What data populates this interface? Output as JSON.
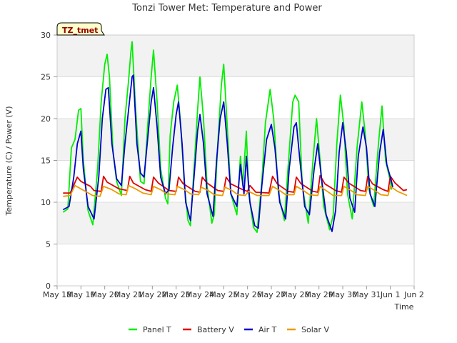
{
  "chart_data": {
    "type": "line",
    "title": "Tonzi Tower Met: Temperature and Power",
    "xlabel": "Time",
    "ylabel": "Temperature (C) / Power (V)",
    "ylim": [
      0,
      30
    ],
    "yticks": [
      0,
      5,
      10,
      15,
      20,
      25,
      30
    ],
    "xlim": [
      0,
      15
    ],
    "xticks": [
      {
        "value": 0,
        "label": "May 18"
      },
      {
        "value": 1,
        "label": "May 19"
      },
      {
        "value": 2,
        "label": "May 20"
      },
      {
        "value": 3,
        "label": "May 21"
      },
      {
        "value": 4,
        "label": "May 22"
      },
      {
        "value": 5,
        "label": "May 23"
      },
      {
        "value": 6,
        "label": "May 24"
      },
      {
        "value": 7,
        "label": "May 25"
      },
      {
        "value": 8,
        "label": "May 26"
      },
      {
        "value": 9,
        "label": "May 27"
      },
      {
        "value": 10,
        "label": "May 28"
      },
      {
        "value": 11,
        "label": "May 29"
      },
      {
        "value": 12,
        "label": "May 30"
      },
      {
        "value": 13,
        "label": "May 31"
      },
      {
        "value": 14,
        "label": "Jun 1"
      },
      {
        "value": 15,
        "label": "Jun 2"
      }
    ],
    "grid": true,
    "legend_position": "bottom",
    "badge": "TZ_tmet",
    "series": [
      {
        "name": "Panel T",
        "color": "#00ee00",
        "points": [
          [
            0.25,
            8.8
          ],
          [
            0.45,
            9.2
          ],
          [
            0.6,
            16.5
          ],
          [
            0.75,
            17.5
          ],
          [
            0.9,
            21.0
          ],
          [
            1.0,
            21.2
          ],
          [
            1.1,
            15.0
          ],
          [
            1.3,
            9.0
          ],
          [
            1.5,
            7.3
          ],
          [
            1.7,
            14.0
          ],
          [
            1.85,
            22.0
          ],
          [
            2.0,
            26.5
          ],
          [
            2.1,
            27.7
          ],
          [
            2.2,
            25.0
          ],
          [
            2.35,
            16.0
          ],
          [
            2.5,
            12.5
          ],
          [
            2.7,
            10.8
          ],
          [
            2.85,
            20.0
          ],
          [
            3.0,
            24.5
          ],
          [
            3.1,
            28.0
          ],
          [
            3.15,
            29.2
          ],
          [
            3.3,
            21.0
          ],
          [
            3.5,
            12.5
          ],
          [
            3.65,
            12.2
          ],
          [
            3.8,
            19.0
          ],
          [
            3.95,
            25.0
          ],
          [
            4.05,
            28.2
          ],
          [
            4.2,
            22.0
          ],
          [
            4.35,
            14.0
          ],
          [
            4.55,
            10.5
          ],
          [
            4.65,
            9.8
          ],
          [
            4.75,
            18.0
          ],
          [
            4.9,
            22.0
          ],
          [
            5.05,
            24.0
          ],
          [
            5.2,
            19.0
          ],
          [
            5.35,
            12.0
          ],
          [
            5.5,
            7.8
          ],
          [
            5.6,
            7.2
          ],
          [
            5.75,
            14.0
          ],
          [
            5.9,
            21.0
          ],
          [
            6.0,
            25.0
          ],
          [
            6.15,
            20.0
          ],
          [
            6.3,
            12.0
          ],
          [
            6.5,
            7.5
          ],
          [
            6.6,
            8.5
          ],
          [
            6.75,
            17.0
          ],
          [
            6.9,
            24.0
          ],
          [
            7.0,
            26.5
          ],
          [
            7.15,
            19.0
          ],
          [
            7.3,
            11.0
          ],
          [
            7.55,
            8.5
          ],
          [
            7.7,
            15.5
          ],
          [
            7.8,
            12.0
          ],
          [
            7.95,
            18.5
          ],
          [
            8.05,
            11.0
          ],
          [
            8.25,
            7.0
          ],
          [
            8.4,
            6.4
          ],
          [
            8.6,
            12.5
          ],
          [
            8.75,
            19.5
          ],
          [
            8.95,
            23.5
          ],
          [
            9.1,
            20.0
          ],
          [
            9.3,
            11.0
          ],
          [
            9.55,
            7.8
          ],
          [
            9.7,
            14.0
          ],
          [
            9.9,
            22.0
          ],
          [
            10.0,
            22.8
          ],
          [
            10.15,
            22.0
          ],
          [
            10.3,
            12.0
          ],
          [
            10.55,
            7.5
          ],
          [
            10.75,
            15.0
          ],
          [
            10.9,
            20.0
          ],
          [
            11.05,
            15.0
          ],
          [
            11.2,
            9.5
          ],
          [
            11.45,
            6.7
          ],
          [
            11.6,
            8.5
          ],
          [
            11.75,
            17.0
          ],
          [
            11.9,
            22.8
          ],
          [
            12.05,
            19.0
          ],
          [
            12.2,
            11.0
          ],
          [
            12.4,
            8.0
          ],
          [
            12.6,
            16.5
          ],
          [
            12.8,
            22.0
          ],
          [
            12.95,
            18.0
          ],
          [
            13.1,
            11.5
          ],
          [
            13.3,
            9.5
          ],
          [
            13.5,
            17.0
          ],
          [
            13.65,
            21.5
          ],
          [
            13.8,
            15.0
          ],
          [
            14.0,
            12.5
          ],
          [
            14.05,
            11.5
          ]
        ]
      },
      {
        "name": "Battery V",
        "color": "#dd0000",
        "points": [
          [
            0.25,
            11.1
          ],
          [
            0.55,
            11.1
          ],
          [
            0.85,
            13.0
          ],
          [
            1.0,
            12.5
          ],
          [
            1.4,
            11.9
          ],
          [
            1.55,
            11.4
          ],
          [
            1.85,
            11.3
          ],
          [
            1.95,
            13.1
          ],
          [
            2.1,
            12.4
          ],
          [
            2.6,
            11.6
          ],
          [
            2.95,
            11.4
          ],
          [
            3.05,
            13.1
          ],
          [
            3.2,
            12.3
          ],
          [
            3.7,
            11.5
          ],
          [
            3.95,
            11.3
          ],
          [
            4.05,
            13.0
          ],
          [
            4.25,
            12.3
          ],
          [
            4.7,
            11.4
          ],
          [
            5.0,
            11.3
          ],
          [
            5.1,
            13.0
          ],
          [
            5.3,
            12.2
          ],
          [
            5.8,
            11.3
          ],
          [
            6.0,
            11.2
          ],
          [
            6.1,
            13.0
          ],
          [
            6.3,
            12.3
          ],
          [
            6.75,
            11.4
          ],
          [
            7.0,
            11.3
          ],
          [
            7.1,
            13.0
          ],
          [
            7.3,
            12.2
          ],
          [
            7.8,
            11.5
          ],
          [
            8.0,
            11.3
          ],
          [
            8.1,
            12.0
          ],
          [
            8.35,
            11.2
          ],
          [
            8.9,
            11.1
          ],
          [
            9.05,
            13.1
          ],
          [
            9.25,
            12.2
          ],
          [
            9.7,
            11.3
          ],
          [
            9.95,
            11.2
          ],
          [
            10.05,
            13.0
          ],
          [
            10.25,
            12.2
          ],
          [
            10.75,
            11.3
          ],
          [
            10.95,
            11.2
          ],
          [
            11.05,
            13.2
          ],
          [
            11.25,
            12.2
          ],
          [
            11.7,
            11.4
          ],
          [
            11.95,
            11.2
          ],
          [
            12.05,
            13.0
          ],
          [
            12.25,
            12.3
          ],
          [
            12.75,
            11.4
          ],
          [
            12.95,
            11.3
          ],
          [
            13.05,
            13.1
          ],
          [
            13.25,
            12.2
          ],
          [
            13.7,
            11.5
          ],
          [
            13.9,
            11.3
          ],
          [
            14.0,
            13.1
          ],
          [
            14.2,
            12.3
          ],
          [
            14.55,
            11.4
          ],
          [
            14.7,
            11.5
          ]
        ]
      },
      {
        "name": "Air T",
        "color": "#0000cc",
        "points": [
          [
            0.25,
            9.1
          ],
          [
            0.5,
            9.5
          ],
          [
            0.7,
            13.0
          ],
          [
            0.85,
            17.0
          ],
          [
            1.0,
            18.5
          ],
          [
            1.1,
            14.0
          ],
          [
            1.3,
            9.5
          ],
          [
            1.55,
            8.0
          ],
          [
            1.75,
            13.0
          ],
          [
            1.9,
            20.0
          ],
          [
            2.05,
            23.5
          ],
          [
            2.15,
            23.7
          ],
          [
            2.3,
            17.0
          ],
          [
            2.5,
            12.8
          ],
          [
            2.7,
            12.0
          ],
          [
            2.85,
            17.0
          ],
          [
            3.0,
            21.0
          ],
          [
            3.15,
            25.0
          ],
          [
            3.2,
            25.2
          ],
          [
            3.35,
            17.0
          ],
          [
            3.5,
            13.5
          ],
          [
            3.65,
            13.0
          ],
          [
            3.8,
            17.5
          ],
          [
            3.95,
            22.0
          ],
          [
            4.05,
            23.7
          ],
          [
            4.2,
            19.0
          ],
          [
            4.35,
            13.0
          ],
          [
            4.55,
            11.0
          ],
          [
            4.7,
            11.5
          ],
          [
            4.85,
            16.5
          ],
          [
            5.0,
            20.5
          ],
          [
            5.1,
            22.0
          ],
          [
            5.25,
            17.0
          ],
          [
            5.4,
            10.0
          ],
          [
            5.6,
            7.8
          ],
          [
            5.75,
            13.0
          ],
          [
            5.9,
            18.5
          ],
          [
            6.0,
            20.5
          ],
          [
            6.15,
            17.0
          ],
          [
            6.3,
            11.0
          ],
          [
            6.55,
            8.3
          ],
          [
            6.7,
            15.0
          ],
          [
            6.85,
            20.0
          ],
          [
            7.0,
            22.0
          ],
          [
            7.15,
            17.0
          ],
          [
            7.3,
            11.0
          ],
          [
            7.55,
            9.5
          ],
          [
            7.7,
            14.5
          ],
          [
            7.85,
            11.0
          ],
          [
            7.95,
            15.5
          ],
          [
            8.1,
            10.0
          ],
          [
            8.3,
            7.2
          ],
          [
            8.45,
            6.9
          ],
          [
            8.6,
            12.0
          ],
          [
            8.8,
            17.5
          ],
          [
            9.0,
            19.3
          ],
          [
            9.15,
            16.5
          ],
          [
            9.35,
            10.0
          ],
          [
            9.6,
            8.0
          ],
          [
            9.75,
            14.0
          ],
          [
            9.95,
            19.0
          ],
          [
            10.05,
            19.5
          ],
          [
            10.2,
            15.0
          ],
          [
            10.4,
            9.5
          ],
          [
            10.6,
            8.5
          ],
          [
            10.8,
            14.0
          ],
          [
            10.95,
            17.0
          ],
          [
            11.1,
            13.0
          ],
          [
            11.3,
            8.5
          ],
          [
            11.55,
            6.5
          ],
          [
            11.7,
            9.0
          ],
          [
            11.85,
            16.0
          ],
          [
            12.0,
            19.5
          ],
          [
            12.15,
            16.0
          ],
          [
            12.3,
            10.5
          ],
          [
            12.5,
            8.8
          ],
          [
            12.65,
            15.5
          ],
          [
            12.85,
            19.0
          ],
          [
            13.0,
            16.5
          ],
          [
            13.15,
            11.0
          ],
          [
            13.35,
            9.5
          ],
          [
            13.55,
            16.0
          ],
          [
            13.7,
            18.7
          ],
          [
            13.85,
            14.5
          ],
          [
            14.05,
            12.5
          ],
          [
            14.1,
            11.8
          ]
        ]
      },
      {
        "name": "Solar V",
        "color": "#ee9900",
        "points": [
          [
            0.25,
            10.7
          ],
          [
            0.55,
            10.8
          ],
          [
            0.75,
            12.0
          ],
          [
            1.0,
            11.6
          ],
          [
            1.25,
            11.2
          ],
          [
            1.5,
            10.8
          ],
          [
            1.8,
            10.7
          ],
          [
            1.95,
            11.9
          ],
          [
            2.3,
            11.5
          ],
          [
            2.6,
            11.0
          ],
          [
            2.9,
            10.9
          ],
          [
            3.0,
            12.0
          ],
          [
            3.3,
            11.6
          ],
          [
            3.6,
            11.1
          ],
          [
            3.95,
            10.9
          ],
          [
            4.05,
            11.9
          ],
          [
            4.35,
            11.5
          ],
          [
            4.6,
            11.0
          ],
          [
            4.95,
            10.9
          ],
          [
            5.05,
            11.9
          ],
          [
            5.35,
            11.5
          ],
          [
            5.6,
            11.0
          ],
          [
            5.95,
            10.9
          ],
          [
            6.05,
            11.8
          ],
          [
            6.35,
            11.4
          ],
          [
            6.6,
            10.9
          ],
          [
            6.95,
            10.8
          ],
          [
            7.05,
            11.8
          ],
          [
            7.35,
            11.4
          ],
          [
            7.6,
            10.9
          ],
          [
            7.9,
            10.8
          ],
          [
            8.05,
            11.3
          ],
          [
            8.4,
            10.8
          ],
          [
            8.9,
            10.8
          ],
          [
            9.05,
            11.9
          ],
          [
            9.35,
            11.4
          ],
          [
            9.6,
            10.9
          ],
          [
            9.95,
            10.9
          ],
          [
            10.05,
            11.9
          ],
          [
            10.35,
            11.4
          ],
          [
            10.6,
            10.9
          ],
          [
            10.95,
            10.8
          ],
          [
            11.05,
            11.9
          ],
          [
            11.35,
            11.3
          ],
          [
            11.6,
            10.8
          ],
          [
            11.95,
            10.8
          ],
          [
            12.05,
            11.9
          ],
          [
            12.35,
            11.4
          ],
          [
            12.6,
            10.9
          ],
          [
            12.95,
            10.8
          ],
          [
            13.05,
            11.9
          ],
          [
            13.35,
            11.4
          ],
          [
            13.6,
            10.9
          ],
          [
            13.9,
            10.8
          ],
          [
            14.0,
            11.9
          ],
          [
            14.3,
            11.3
          ],
          [
            14.7,
            10.8
          ]
        ]
      }
    ]
  }
}
